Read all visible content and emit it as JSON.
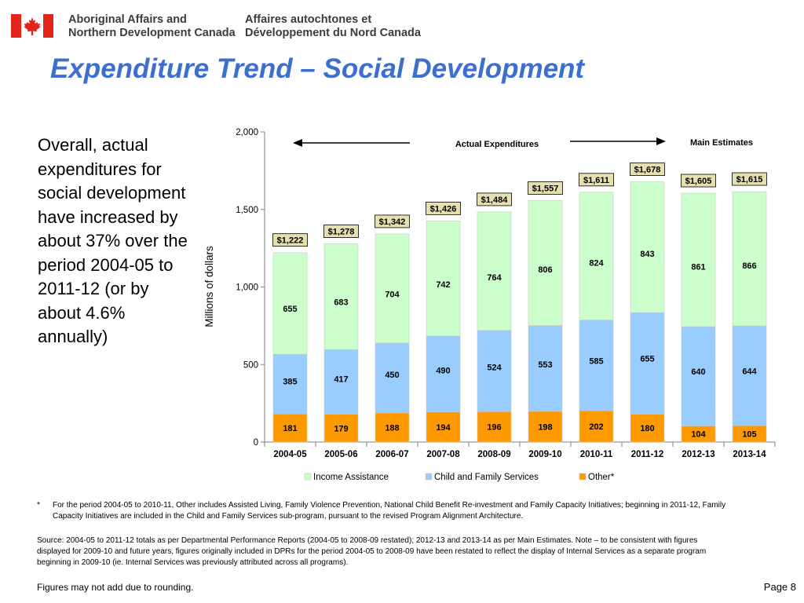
{
  "header": {
    "org_en_line1": "Aboriginal Affairs and",
    "org_en_line2": "Northern Development Canada",
    "org_fr_line1": "Affaires autochtones et",
    "org_fr_line2": "Développement du Nord Canada",
    "flag_icon": "canada-flag-icon",
    "flag_color": "#e1251b"
  },
  "title": "Expenditure Trend – Social Development",
  "summary": "Overall, actual expenditures for social development have increased by about 37% over the period 2004-05 to 2011-12 (or by about 4.6% annually)",
  "chart_data": {
    "type": "bar",
    "stacked": true,
    "ylabel": "Millions of dollars",
    "ylim": [
      0,
      2000
    ],
    "yticks": [
      0,
      500,
      1000,
      1500,
      2000
    ],
    "ytick_labels": [
      "0",
      "500",
      "1,000",
      "1,500",
      "2,000"
    ],
    "categories": [
      "2004-05",
      "2005-06",
      "2006-07",
      "2007-08",
      "2008-09",
      "2009-10",
      "2010-11",
      "2011-12",
      "2012-13",
      "2013-14"
    ],
    "series": [
      {
        "name": "Other*",
        "color": "#ff9900",
        "values": [
          181,
          179,
          188,
          194,
          196,
          198,
          202,
          180,
          104,
          105
        ]
      },
      {
        "name": "Child and Family Services",
        "color": "#99ccff",
        "values": [
          385,
          417,
          450,
          490,
          524,
          553,
          585,
          655,
          640,
          644
        ]
      },
      {
        "name": "Income Assistance",
        "color": "#ccffcc",
        "values": [
          655,
          683,
          704,
          742,
          764,
          806,
          824,
          843,
          861,
          866
        ]
      }
    ],
    "totals": [
      1222,
      1278,
      1342,
      1426,
      1484,
      1557,
      1611,
      1678,
      1605,
      1615
    ],
    "total_labels": [
      "$1,222",
      "$1,278",
      "$1,342",
      "$1,426",
      "$1,484",
      "$1,557",
      "$1,611",
      "$1,678",
      "$1,605",
      "$1,615"
    ],
    "total_label_fill": "#e6e0b0",
    "annotations": {
      "actual": "Actual Expenditures",
      "main": "Main Estimates"
    },
    "legend_position": "bottom",
    "grid": false
  },
  "footnote": {
    "star": "*",
    "text": "For the period 2004-05 to 2010-11, Other includes Assisted Living, Family Violence Prevention, National Child Benefit Re-investment and Family Capacity Initiatives; beginning in 2011-12, Family Capacity Initiatives are included in the Child and Family Services sub-program, pursuant to the revised Program Alignment Architecture."
  },
  "source": "Source: 2004-05 to 2011-12 totals as per Departmental Performance Reports (2004-05 to 2008-09 restated); 2012-13 and 2013-14 as per Main Estimates. Note – to be consistent with figures displayed for 2009-10 and future years, figures originally included in DPRs for the period 2004-05 to 2008-09 have been restated to reflect the display of Internal Services as a separate program beginning in 2009-10 (ie. Internal Services was previously attributed across all programs).",
  "rounding_note": "Figures may not add due to rounding.",
  "page_number": "Page 8"
}
